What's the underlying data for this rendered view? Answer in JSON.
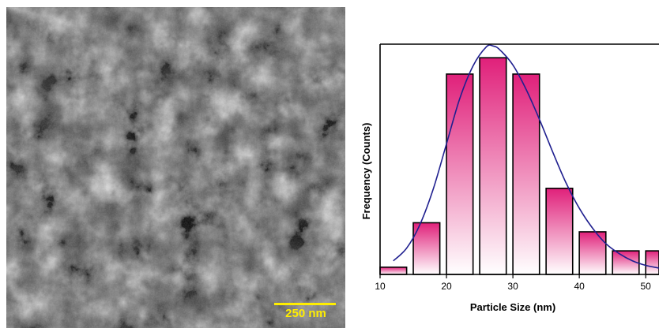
{
  "sem_image": {
    "description_icon": "sem-micrograph",
    "scale_bar": {
      "label": "250 nm",
      "color": "#ffee00"
    }
  },
  "chart_data": {
    "type": "bar",
    "xlabel": "Particle Size (nm)",
    "ylabel": "Frequency (Counts)",
    "xticks": [
      10,
      20,
      30,
      40,
      50
    ],
    "xlim": [
      10,
      52
    ],
    "ylim": [
      0,
      12.7
    ],
    "y_ticks_shown": false,
    "bar_width": 4,
    "bar_gradient": {
      "top": "#e0207a",
      "bottom": "#ffffff"
    },
    "bar_edge_color": "#000000",
    "curve_color": "#1f1f8f",
    "bars": [
      {
        "x": 12,
        "value": 0.4
      },
      {
        "x": 17,
        "value": 2.85
      },
      {
        "x": 22,
        "value": 11.05
      },
      {
        "x": 27,
        "value": 11.95
      },
      {
        "x": 32,
        "value": 11.05
      },
      {
        "x": 37,
        "value": 4.75
      },
      {
        "x": 42,
        "value": 2.35
      },
      {
        "x": 47,
        "value": 1.3
      },
      {
        "x": 52,
        "value": 1.3
      }
    ],
    "fit_curve": {
      "x": [
        12,
        14,
        16,
        18,
        20,
        22,
        24,
        26,
        27,
        28,
        30,
        32,
        34,
        36,
        38,
        40,
        42,
        44,
        46,
        48,
        50,
        52
      ],
      "y": [
        0.75,
        1.45,
        2.75,
        4.7,
        7.2,
        9.7,
        11.5,
        12.55,
        12.6,
        12.4,
        11.55,
        10.2,
        8.55,
        6.75,
        5.05,
        3.65,
        2.55,
        1.7,
        1.15,
        0.75,
        0.5,
        0.35
      ]
    }
  }
}
